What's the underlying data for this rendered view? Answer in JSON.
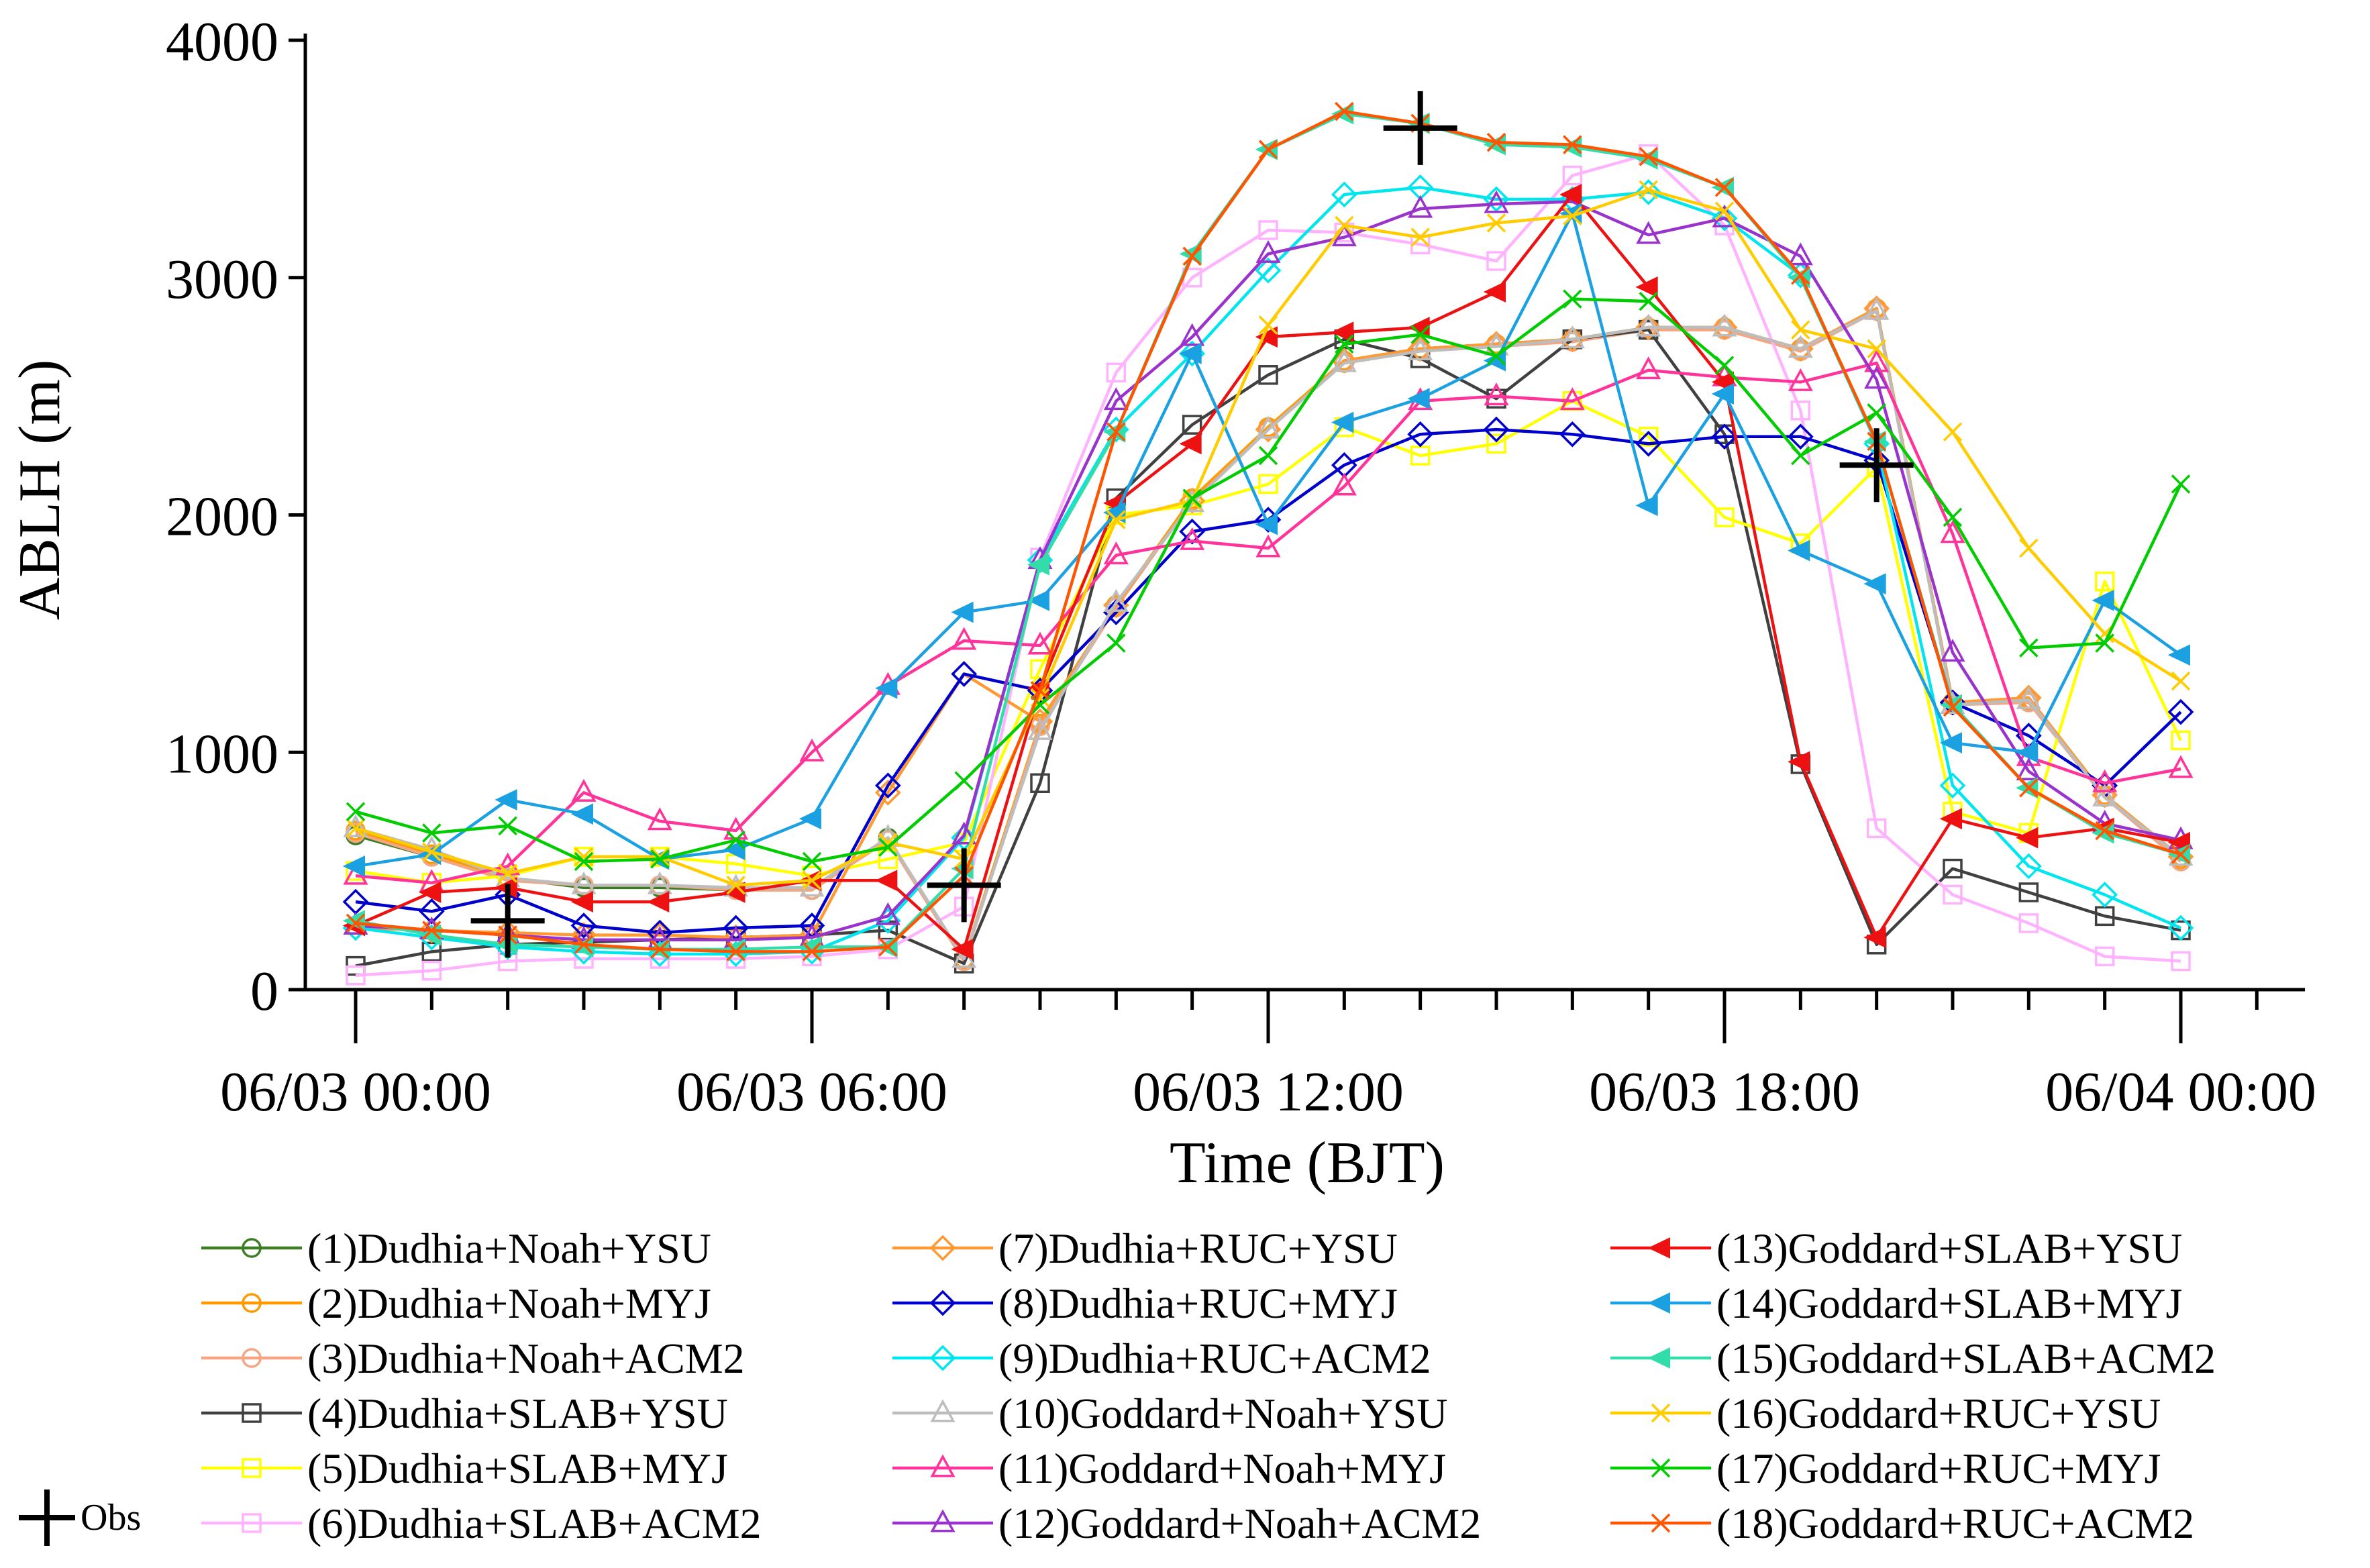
{
  "chart_data": {
    "type": "line",
    "xlabel": "Time (BJT)",
    "ylabel": "ABLH (m)",
    "ylim": [
      0,
      4000
    ],
    "xlim": [
      0,
      24
    ],
    "yticks": [
      0,
      1000,
      2000,
      3000,
      4000
    ],
    "ytick_labels": [
      "0",
      "1000",
      "2000",
      "3000",
      "4000"
    ],
    "xticks": [
      0,
      6,
      12,
      18,
      24
    ],
    "xtick_labels": [
      "06/03 00:00",
      "06/03 06:00",
      "06/03 12:00",
      "06/03 18:00",
      "06/04 00:00"
    ],
    "x_minor_step": 1,
    "grid": false,
    "legend_position": "below",
    "x": [
      0,
      1,
      2,
      3,
      4,
      5,
      6,
      7,
      8,
      9,
      10,
      11,
      12,
      13,
      14,
      15,
      16,
      17,
      18,
      19,
      20,
      21,
      22,
      23,
      24
    ],
    "series": [
      {
        "name": "(1)Dudhia+Noah+YSU",
        "color": "#3b7d23",
        "marker": "circle",
        "values": [
          650,
          560,
          470,
          430,
          430,
          420,
          420,
          640,
          120,
          1120,
          1620,
          2060,
          2360,
          2650,
          2700,
          2720,
          2740,
          2790,
          2790,
          2700,
          2870,
          1210,
          1220,
          820,
          550
        ]
      },
      {
        "name": "(2)Dudhia+Noah+MYJ",
        "color": "#ff9900",
        "marker": "circle",
        "values": [
          670,
          570,
          470,
          440,
          440,
          420,
          420,
          630,
          130,
          1120,
          1620,
          2070,
          2370,
          2650,
          2700,
          2720,
          2740,
          2790,
          2790,
          2700,
          2870,
          1210,
          1220,
          820,
          550
        ]
      },
      {
        "name": "(3)Dudhia+Noah+ACM2",
        "color": "#f4a582",
        "marker": "circle",
        "values": [
          660,
          560,
          460,
          440,
          440,
          420,
          420,
          630,
          120,
          1110,
          1610,
          2060,
          2360,
          2640,
          2690,
          2710,
          2730,
          2780,
          2780,
          2690,
          2860,
          1200,
          1210,
          810,
          540
        ]
      },
      {
        "name": "(4)Dudhia+SLAB+YSU",
        "color": "#404040",
        "marker": "square",
        "values": [
          100,
          160,
          190,
          200,
          210,
          220,
          230,
          250,
          110,
          870,
          2070,
          2380,
          2590,
          2740,
          2660,
          2490,
          2740,
          2780,
          2340,
          950,
          190,
          510,
          410,
          310,
          250
        ]
      },
      {
        "name": "(5)Dudhia+SLAB+MYJ",
        "color": "#ffff00",
        "marker": "square",
        "values": [
          500,
          450,
          480,
          560,
          560,
          530,
          480,
          550,
          620,
          1350,
          2000,
          2040,
          2130,
          2370,
          2250,
          2300,
          2480,
          2330,
          1990,
          1880,
          2200,
          750,
          660,
          1720,
          1050
        ]
      },
      {
        "name": "(6)Dudhia+SLAB+ACM2",
        "color": "#ffb3ff",
        "marker": "square",
        "values": [
          60,
          80,
          120,
          130,
          130,
          130,
          140,
          170,
          350,
          1820,
          2600,
          3000,
          3200,
          3190,
          3140,
          3070,
          3430,
          3520,
          3220,
          2440,
          680,
          400,
          280,
          140,
          120
        ]
      },
      {
        "name": "(7)Dudhia+RUC+YSU",
        "color": "#ff9933",
        "marker": "diamond",
        "values": [
          260,
          250,
          240,
          230,
          230,
          220,
          230,
          830,
          1330,
          1130,
          1620,
          2060,
          2360,
          2650,
          2700,
          2720,
          2740,
          2790,
          2790,
          2700,
          2870,
          1210,
          1230,
          820,
          560
        ]
      },
      {
        "name": "(8)Dudhia+RUC+MYJ",
        "color": "#0000cc",
        "marker": "diamond",
        "values": [
          370,
          330,
          400,
          270,
          240,
          260,
          270,
          860,
          1330,
          1260,
          1590,
          1930,
          1980,
          2210,
          2340,
          2360,
          2340,
          2300,
          2330,
          2330,
          2230,
          1210,
          1070,
          860,
          1170
        ]
      },
      {
        "name": "(9)Dudhia+RUC+ACM2",
        "color": "#00e5ee",
        "marker": "diamond",
        "values": [
          260,
          220,
          180,
          160,
          150,
          150,
          160,
          290,
          640,
          1810,
          2360,
          2680,
          3030,
          3350,
          3380,
          3330,
          3330,
          3360,
          3250,
          3010,
          2300,
          860,
          520,
          400,
          260
        ]
      },
      {
        "name": "(10)Goddard+Noah+YSU",
        "color": "#bdbdbd",
        "marker": "triangle-up",
        "values": [
          680,
          590,
          470,
          440,
          440,
          430,
          430,
          640,
          130,
          1090,
          1630,
          2050,
          2360,
          2640,
          2690,
          2710,
          2740,
          2790,
          2790,
          2700,
          2860,
          1200,
          1220,
          810,
          560
        ]
      },
      {
        "name": "(11)Goddard+Noah+MYJ",
        "color": "#ff3399",
        "marker": "triangle-up",
        "values": [
          480,
          450,
          520,
          830,
          710,
          670,
          1000,
          1280,
          1470,
          1450,
          1830,
          1890,
          1860,
          2120,
          2480,
          2500,
          2480,
          2610,
          2580,
          2560,
          2640,
          1920,
          980,
          870,
          930
        ]
      },
      {
        "name": "(12)Goddard+Noah+ACM2",
        "color": "#9933cc",
        "marker": "triangle-up",
        "values": [
          270,
          250,
          230,
          210,
          210,
          210,
          220,
          310,
          650,
          1810,
          2480,
          2750,
          3100,
          3170,
          3290,
          3310,
          3320,
          3180,
          3250,
          3090,
          2570,
          1420,
          920,
          700,
          630
        ]
      },
      {
        "name": "(13)Goddard+SLAB+YSU",
        "color": "#ee1111",
        "marker": "triangle-left",
        "values": [
          270,
          410,
          430,
          370,
          370,
          410,
          460,
          460,
          170,
          1270,
          2050,
          2300,
          2750,
          2770,
          2790,
          2940,
          3350,
          2960,
          2560,
          960,
          220,
          720,
          640,
          680,
          620
        ]
      },
      {
        "name": "(14)Goddard+SLAB+MYJ",
        "color": "#1ba1e2",
        "marker": "triangle-left",
        "values": [
          520,
          570,
          800,
          740,
          550,
          590,
          720,
          1270,
          1590,
          1640,
          2010,
          2680,
          1960,
          2390,
          2490,
          2650,
          3270,
          2040,
          2510,
          1850,
          1710,
          1040,
          1000,
          1640,
          1410
        ]
      },
      {
        "name": "(15)Goddard+SLAB+ACM2",
        "color": "#33ddaa",
        "marker": "triangle-left",
        "values": [
          290,
          230,
          190,
          180,
          170,
          170,
          180,
          180,
          510,
          1790,
          2350,
          3100,
          3540,
          3690,
          3650,
          3560,
          3550,
          3500,
          3380,
          3000,
          2310,
          1200,
          850,
          660,
          570
        ]
      },
      {
        "name": "(16)Goddard+RUC+YSU",
        "color": "#ffcc00",
        "marker": "x",
        "values": [
          680,
          580,
          490,
          560,
          560,
          440,
          460,
          620,
          550,
          1230,
          1980,
          2060,
          2800,
          3220,
          3170,
          3230,
          3260,
          3370,
          3280,
          2780,
          2700,
          2350,
          1860,
          1500,
          1300
        ]
      },
      {
        "name": "(17)Goddard+RUC+MYJ",
        "color": "#00cc00",
        "marker": "x",
        "values": [
          750,
          660,
          690,
          540,
          550,
          630,
          540,
          600,
          880,
          1200,
          1460,
          2070,
          2250,
          2720,
          2760,
          2670,
          2910,
          2900,
          2630,
          2250,
          2430,
          1990,
          1440,
          1460,
          2130
        ]
      },
      {
        "name": "(18)Goddard+RUC+ACM2",
        "color": "#ff5500",
        "marker": "x",
        "values": [
          280,
          250,
          230,
          190,
          170,
          160,
          160,
          180,
          480,
          1260,
          2350,
          3090,
          3540,
          3700,
          3650,
          3570,
          3560,
          3510,
          3380,
          3010,
          2310,
          1190,
          850,
          670,
          570
        ]
      }
    ],
    "obs": {
      "name": "Obs",
      "color": "#000000",
      "marker": "plus",
      "x": [
        2,
        8,
        14,
        20
      ],
      "values": [
        290,
        440,
        3630,
        2210
      ]
    }
  }
}
